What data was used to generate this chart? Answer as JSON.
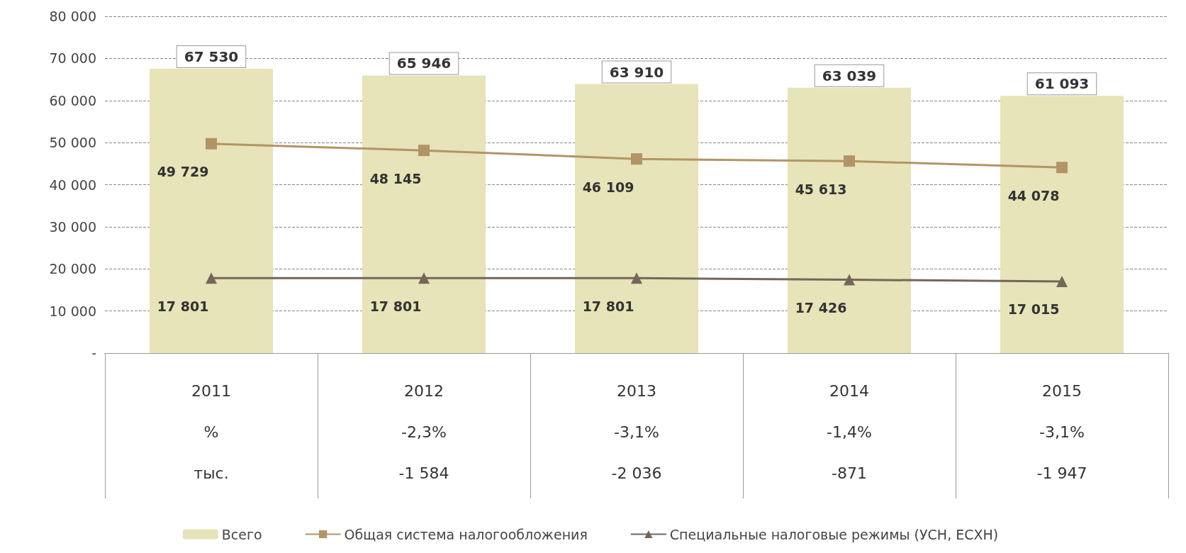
{
  "chart_data": {
    "type": "bar",
    "categories": [
      "2011\n%\nтыс.",
      "2012\n-2,3%\n-1 584",
      "2013\n-3,1%\n-2 036",
      "2014\n-1,4%\n-871",
      "2015\n-3,1%\n-1 947"
    ],
    "series": [
      {
        "name": "Всего",
        "color": "#e6e4b8",
        "values": [
          67530,
          65946,
          63910,
          63039,
          61093
        ],
        "value_labels": [
          "67 530",
          "65 946",
          "63 910",
          "63 039",
          "61 093"
        ]
      },
      {
        "name": "Общая система налогообложения",
        "type": "line",
        "marker": "square",
        "color": "#b39466",
        "values": [
          49729,
          48145,
          46109,
          45613,
          44078
        ],
        "value_labels": [
          "49 729",
          "48 145",
          "46 109",
          "45 613",
          "44 078"
        ]
      },
      {
        "name": "Специальные налоговые режимы (УСН, ЕСХН)",
        "type": "line",
        "marker": "triangle",
        "color": "#74665a",
        "values": [
          17801,
          17801,
          17801,
          17426,
          17015
        ],
        "value_labels": [
          "17 801",
          "17 801",
          "17 801",
          "17 426",
          "17 015"
        ]
      }
    ],
    "ylim": [
      0,
      80000
    ],
    "yticks": [
      {
        "value": 0,
        "label": "-"
      },
      {
        "value": 10000,
        "label": "10 000"
      },
      {
        "value": 20000,
        "label": "20 000"
      },
      {
        "value": 30000,
        "label": "30 000"
      },
      {
        "value": 40000,
        "label": "40 000"
      },
      {
        "value": 50000,
        "label": "50 000"
      },
      {
        "value": 60000,
        "label": "60 000"
      },
      {
        "value": 70000,
        "label": "70 000"
      },
      {
        "value": 80000,
        "label": "80 000"
      }
    ],
    "grid": "y",
    "line_style": "solid",
    "legend": "bottom"
  }
}
